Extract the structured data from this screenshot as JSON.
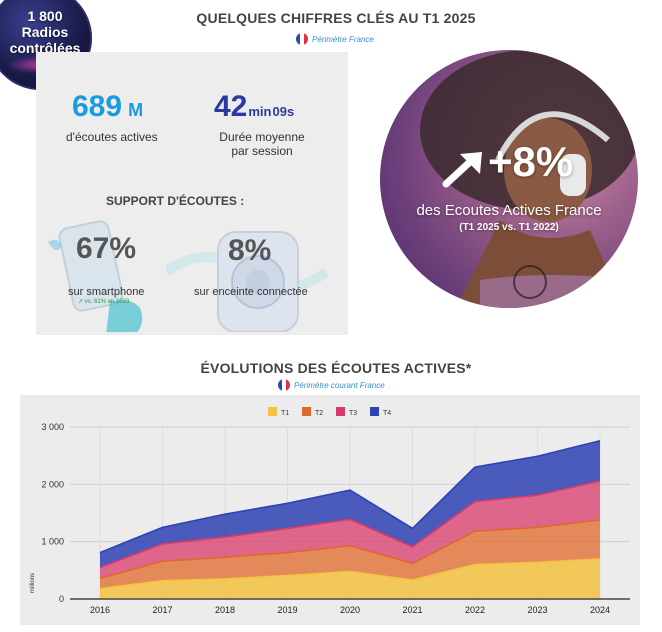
{
  "badge": {
    "line1": "1 800",
    "line2": "Radios",
    "line3": "contrôlées"
  },
  "header": {
    "title": "QUELQUES CHIFFRES CLÉS AU T1 2025",
    "scope": "Périmètre France"
  },
  "stats": {
    "listens_value": "689",
    "listens_unit": "M",
    "listens_label": "d'écoutes actives",
    "duration_min": "42",
    "duration_min_unit": "min",
    "duration_sec": "09s",
    "duration_label_1": "Durée moyenne",
    "duration_label_2": "par session",
    "support_title": "SUPPORT D'ÉCOUTES :",
    "smartphone_pct": "67%",
    "smartphone_label": "sur smartphone",
    "smartphone_note": "↗ vs. 61% en 2023",
    "speaker_pct": "8%",
    "speaker_label": "sur enceinte connectée"
  },
  "highlight": {
    "value": "+8%",
    "label": "des Ecoutes Actives France",
    "note": "(T1 2025 vs. T1 2022)"
  },
  "chart_section": {
    "title": "ÉVOLUTIONS DES ÉCOUTES ACTIVES*",
    "scope": "Périmètre courant France"
  },
  "colors": {
    "T1": "#f5c242",
    "T2": "#e0682a",
    "T3": "#d83a6a",
    "T4": "#2e42b4",
    "accent": "#1a9be0"
  },
  "chart_data": {
    "type": "area",
    "stacked": true,
    "x": [
      "2016",
      "2017",
      "2018",
      "2019",
      "2020",
      "2021",
      "2022",
      "2023",
      "2024"
    ],
    "series": [
      {
        "name": "T1",
        "values": [
          180,
          320,
          350,
          410,
          480,
          330,
          600,
          640,
          700
        ]
      },
      {
        "name": "T2",
        "values": [
          180,
          340,
          380,
          400,
          450,
          290,
          580,
          610,
          680
        ]
      },
      {
        "name": "T3",
        "values": [
          190,
          300,
          350,
          420,
          460,
          290,
          520,
          560,
          680
        ]
      },
      {
        "name": "T4",
        "values": [
          260,
          290,
          400,
          440,
          510,
          320,
          600,
          680,
          700
        ]
      }
    ],
    "ylabel": "millions",
    "yticks": [
      "0",
      "1 000",
      "2 000",
      "3 000"
    ],
    "ylim": [
      0,
      3000
    ],
    "legend_position": "top"
  }
}
